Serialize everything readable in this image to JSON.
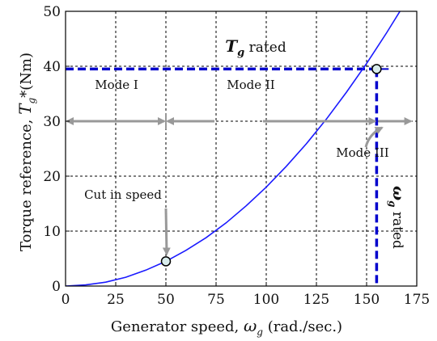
{
  "chart_data": {
    "type": "line",
    "xlabel": {
      "prefix": "Generator speed, ",
      "symbol": "ω",
      "sub": "g",
      "suffix": " (rad./sec.)"
    },
    "ylabel": {
      "prefix": "Torque reference, ",
      "symbol": "T",
      "sub": "g",
      "suffix": "*(Nm)"
    },
    "xlim": [
      0,
      175
    ],
    "ylim": [
      0,
      50
    ],
    "xticks": [
      0,
      25,
      50,
      75,
      100,
      125,
      150,
      175
    ],
    "yticks": [
      0,
      10,
      20,
      30,
      40,
      50
    ],
    "grid": true,
    "series": [
      {
        "x": [
          0,
          10,
          20,
          30,
          40,
          50,
          60,
          70,
          80,
          90,
          100,
          110,
          120,
          130,
          140,
          150,
          155,
          160,
          170,
          175
        ],
        "y": [
          0,
          0.2,
          0.7,
          1.6,
          2.9,
          4.5,
          6.5,
          8.8,
          11.5,
          14.6,
          18.0,
          21.8,
          25.9,
          30.4,
          35.3,
          40.5,
          43.3,
          46.1,
          52.0,
          55.1
        ],
        "color": "#1a1aff"
      }
    ],
    "rated_torque": 39.5,
    "rated_speed": 155,
    "cut_in_point": {
      "x": 50,
      "y": 4.5
    },
    "rated_point": {
      "x": 155,
      "y": 39.5
    },
    "dashed_color": "#0000cc",
    "annotations": {
      "tg_rated": {
        "symbol": "T",
        "sub": "g",
        "text": " rated"
      },
      "mode1": "Mode I",
      "mode2": "Mode II",
      "mode3": "Mode III",
      "cut_in": "Cut in speed",
      "wg_rated": {
        "symbol": "ω",
        "sub": "g",
        "text": " rated"
      }
    }
  }
}
